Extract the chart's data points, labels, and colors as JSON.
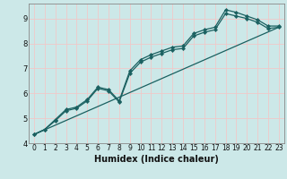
{
  "xlabel": "Humidex (Indice chaleur)",
  "xlim": [
    -0.5,
    23.5
  ],
  "ylim": [
    4.0,
    9.6
  ],
  "bg_color": "#cce8e8",
  "grid_color": "#f0c8c8",
  "line_color": "#1a6060",
  "line1_x": [
    0,
    1,
    2,
    3,
    4,
    5,
    6,
    7,
    8,
    9,
    10,
    11,
    12,
    13,
    14,
    15,
    16,
    17,
    18,
    19,
    20,
    21,
    22,
    23
  ],
  "line1_y": [
    4.35,
    4.55,
    4.95,
    5.35,
    5.45,
    5.75,
    6.25,
    6.15,
    5.7,
    6.9,
    7.35,
    7.55,
    7.7,
    7.85,
    7.9,
    8.4,
    8.55,
    8.65,
    9.35,
    9.25,
    9.1,
    8.95,
    8.7,
    8.7
  ],
  "line2_x": [
    0,
    1,
    2,
    3,
    4,
    5,
    6,
    7,
    8,
    9,
    10,
    11,
    12,
    13,
    14,
    15,
    16,
    17,
    18,
    19,
    20,
    21,
    22,
    23
  ],
  "line2_y": [
    4.35,
    4.55,
    4.9,
    5.3,
    5.4,
    5.7,
    6.2,
    6.1,
    5.65,
    6.8,
    7.25,
    7.45,
    7.6,
    7.75,
    7.8,
    8.3,
    8.45,
    8.55,
    9.2,
    9.1,
    9.0,
    8.85,
    8.6,
    8.65
  ],
  "line3_x": [
    0,
    23
  ],
  "line3_y": [
    4.35,
    8.65
  ],
  "xticks": [
    0,
    1,
    2,
    3,
    4,
    5,
    6,
    7,
    8,
    9,
    10,
    11,
    12,
    13,
    14,
    15,
    16,
    17,
    18,
    19,
    20,
    21,
    22,
    23
  ],
  "yticks": [
    4,
    5,
    6,
    7,
    8,
    9
  ],
  "xlabel_fontsize": 7,
  "tick_fontsize": 5.5
}
